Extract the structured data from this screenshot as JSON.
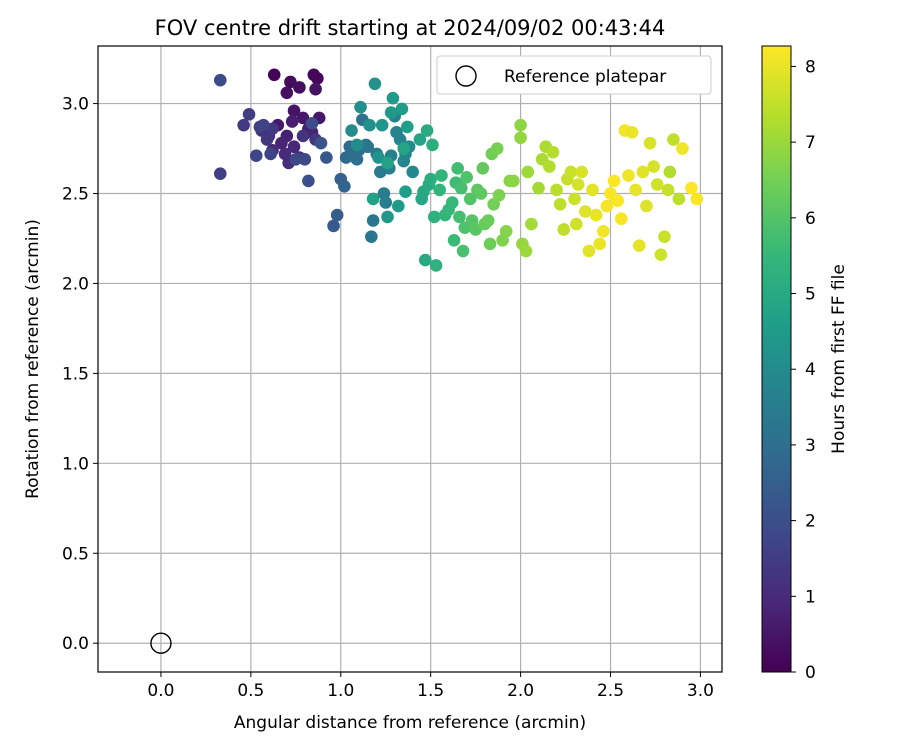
{
  "chart_data": {
    "type": "scatter",
    "title": "FOV centre drift starting at 2024/09/02 00:43:44",
    "xlabel": "Angular distance from reference (arcmin)",
    "ylabel": "Rotation from reference (arcmin)",
    "xlim": [
      -0.35,
      3.12
    ],
    "ylim": [
      -0.16,
      3.32
    ],
    "xticks": [
      0.0,
      0.5,
      1.0,
      1.5,
      2.0,
      2.5,
      3.0
    ],
    "xtick_labels": [
      "0.0",
      "0.5",
      "1.0",
      "1.5",
      "2.0",
      "2.5",
      "3.0"
    ],
    "yticks": [
      0.0,
      0.5,
      1.0,
      1.5,
      2.0,
      2.5,
      3.0
    ],
    "ytick_labels": [
      "0.0",
      "0.5",
      "1.0",
      "1.5",
      "2.0",
      "2.5",
      "3.0"
    ],
    "grid": true,
    "legend": {
      "position": "top-right",
      "entries": [
        "Reference platepar"
      ]
    },
    "reference_point": {
      "x": 0.0,
      "y": 0.0,
      "label": "Reference platepar"
    },
    "colorbar": {
      "label": "Hours from first FF file",
      "min": 0,
      "max": 8.27,
      "ticks": [
        0,
        1,
        2,
        3,
        4,
        5,
        6,
        7,
        8
      ],
      "tick_labels": [
        "0",
        "1",
        "2",
        "3",
        "4",
        "5",
        "6",
        "7",
        "8"
      ],
      "colormap": "viridis",
      "colormap_stops": [
        "#440154",
        "#482878",
        "#3e4989",
        "#31688e",
        "#26828e",
        "#1f9e89",
        "#35b779",
        "#6ece58",
        "#b5de2b",
        "#fde725"
      ]
    },
    "series": [
      {
        "points": [
          [
            0.63,
            3.16,
            0.05
          ],
          [
            0.85,
            3.16,
            0.1
          ],
          [
            0.87,
            3.14,
            0.15
          ],
          [
            0.72,
            3.12,
            0.25
          ],
          [
            0.77,
            3.09,
            0.3
          ],
          [
            0.7,
            3.06,
            0.35
          ],
          [
            0.86,
            3.08,
            0.4
          ],
          [
            0.74,
            2.96,
            0.45
          ],
          [
            0.79,
            2.92,
            0.5
          ],
          [
            0.88,
            2.92,
            0.55
          ],
          [
            0.65,
            2.88,
            0.6
          ],
          [
            0.73,
            2.9,
            0.65
          ],
          [
            0.82,
            2.86,
            0.7
          ],
          [
            0.7,
            2.82,
            0.75
          ],
          [
            0.84,
            2.84,
            0.8
          ],
          [
            0.67,
            2.78,
            0.85
          ],
          [
            0.74,
            2.76,
            0.9
          ],
          [
            0.62,
            2.74,
            0.95
          ],
          [
            0.69,
            2.72,
            1.0
          ],
          [
            0.71,
            2.67,
            1.05
          ],
          [
            0.77,
            2.7,
            1.1
          ],
          [
            0.6,
            2.82,
            1.15
          ],
          [
            0.56,
            2.85,
            1.2
          ],
          [
            0.79,
            2.82,
            1.25
          ],
          [
            0.86,
            2.8,
            1.3
          ],
          [
            0.59,
            2.8,
            1.35
          ],
          [
            0.62,
            2.86,
            1.4
          ],
          [
            0.46,
            2.88,
            1.45
          ],
          [
            0.49,
            2.94,
            1.5
          ],
          [
            0.33,
            2.61,
            1.55
          ],
          [
            0.55,
            2.87,
            1.6
          ],
          [
            0.57,
            2.88,
            1.65
          ],
          [
            0.61,
            2.72,
            1.7
          ],
          [
            0.53,
            2.71,
            1.75
          ],
          [
            0.75,
            2.69,
            1.8
          ],
          [
            0.8,
            2.69,
            1.85
          ],
          [
            0.33,
            3.13,
            1.9
          ],
          [
            0.84,
            2.89,
            1.95
          ],
          [
            0.82,
            2.57,
            2.05
          ],
          [
            0.89,
            2.78,
            2.15
          ],
          [
            0.92,
            2.7,
            2.25
          ],
          [
            0.96,
            2.32,
            2.35
          ],
          [
            0.98,
            2.38,
            2.45
          ],
          [
            1.0,
            2.58,
            2.55
          ],
          [
            1.02,
            2.54,
            2.65
          ],
          [
            1.03,
            2.7,
            2.75
          ],
          [
            1.05,
            2.76,
            2.85
          ],
          [
            1.07,
            2.71,
            2.95
          ],
          [
            1.09,
            2.69,
            3.0
          ],
          [
            1.1,
            2.74,
            3.05
          ],
          [
            1.12,
            2.91,
            3.1
          ],
          [
            1.14,
            2.77,
            3.15
          ],
          [
            1.15,
            2.76,
            3.2
          ],
          [
            1.17,
            2.26,
            3.25
          ],
          [
            1.18,
            2.35,
            3.3
          ],
          [
            1.2,
            2.72,
            3.35
          ],
          [
            1.22,
            2.62,
            3.4
          ],
          [
            1.24,
            2.5,
            3.45
          ],
          [
            1.25,
            2.45,
            3.5
          ],
          [
            1.27,
            2.64,
            3.55
          ],
          [
            1.28,
            2.71,
            3.6
          ],
          [
            1.3,
            2.93,
            3.65
          ],
          [
            1.31,
            2.84,
            3.7
          ],
          [
            1.33,
            2.8,
            3.75
          ],
          [
            1.35,
            2.68,
            3.8
          ],
          [
            1.36,
            2.72,
            3.85
          ],
          [
            1.38,
            2.76,
            3.9
          ],
          [
            1.4,
            2.62,
            3.95
          ],
          [
            1.06,
            2.85,
            4.0
          ],
          [
            1.09,
            2.77,
            4.05
          ],
          [
            1.11,
            2.98,
            4.1
          ],
          [
            1.16,
            2.88,
            4.15
          ],
          [
            1.19,
            3.11,
            4.2
          ],
          [
            1.21,
            2.7,
            4.25
          ],
          [
            1.23,
            2.88,
            4.3
          ],
          [
            1.26,
            2.37,
            4.35
          ],
          [
            1.28,
            2.95,
            4.4
          ],
          [
            1.29,
            3.03,
            4.45
          ],
          [
            1.32,
            2.43,
            4.5
          ],
          [
            1.34,
            2.97,
            4.55
          ],
          [
            1.36,
            2.51,
            4.6
          ],
          [
            1.37,
            2.87,
            4.65
          ],
          [
            1.18,
            2.47,
            4.7
          ],
          [
            1.26,
            2.67,
            4.75
          ],
          [
            1.35,
            2.75,
            4.8
          ],
          [
            1.44,
            2.8,
            4.85
          ],
          [
            1.45,
            2.47,
            4.9
          ],
          [
            1.46,
            2.51,
            4.95
          ],
          [
            1.47,
            2.13,
            5.0
          ],
          [
            1.48,
            2.85,
            5.05
          ],
          [
            1.49,
            2.55,
            5.1
          ],
          [
            1.5,
            2.58,
            5.15
          ],
          [
            1.51,
            2.77,
            5.2
          ],
          [
            1.52,
            2.37,
            5.25
          ],
          [
            1.53,
            2.1,
            5.3
          ],
          [
            1.55,
            2.52,
            5.35
          ],
          [
            1.56,
            2.6,
            5.4
          ],
          [
            1.58,
            2.38,
            5.45
          ],
          [
            1.6,
            2.41,
            5.5
          ],
          [
            1.62,
            2.45,
            5.55
          ],
          [
            1.63,
            2.24,
            5.6
          ],
          [
            1.64,
            2.56,
            5.65
          ],
          [
            1.65,
            2.64,
            5.7
          ],
          [
            1.66,
            2.37,
            5.75
          ],
          [
            1.67,
            2.53,
            5.8
          ],
          [
            1.68,
            2.18,
            5.85
          ],
          [
            1.69,
            2.31,
            5.9
          ],
          [
            1.7,
            2.59,
            5.95
          ],
          [
            1.72,
            2.47,
            6.0
          ],
          [
            1.73,
            2.35,
            6.05
          ],
          [
            1.75,
            2.3,
            6.1
          ],
          [
            1.76,
            2.52,
            6.15
          ],
          [
            1.78,
            2.5,
            6.2
          ],
          [
            1.79,
            2.64,
            6.25
          ],
          [
            1.8,
            2.33,
            6.3
          ],
          [
            1.82,
            2.35,
            6.35
          ],
          [
            1.83,
            2.22,
            6.4
          ],
          [
            1.84,
            2.72,
            6.45
          ],
          [
            1.85,
            2.44,
            6.5
          ],
          [
            1.87,
            2.75,
            6.55
          ],
          [
            1.88,
            2.49,
            6.6
          ],
          [
            1.9,
            2.24,
            6.65
          ],
          [
            1.92,
            2.29,
            6.7
          ],
          [
            1.94,
            2.57,
            6.75
          ],
          [
            1.96,
            2.57,
            6.8
          ],
          [
            2.0,
            2.88,
            6.85
          ],
          [
            2.0,
            2.81,
            6.9
          ],
          [
            2.01,
            2.22,
            6.95
          ],
          [
            2.03,
            2.18,
            7.0
          ],
          [
            2.04,
            2.62,
            7.05
          ],
          [
            2.06,
            2.33,
            7.1
          ],
          [
            2.1,
            2.53,
            7.15
          ],
          [
            2.12,
            2.69,
            7.2
          ],
          [
            2.14,
            2.76,
            7.25
          ],
          [
            2.16,
            2.65,
            7.3
          ],
          [
            2.18,
            2.73,
            7.35
          ],
          [
            2.2,
            2.52,
            7.4
          ],
          [
            2.22,
            2.44,
            7.45
          ],
          [
            2.24,
            2.3,
            7.5
          ],
          [
            2.26,
            2.58,
            7.55
          ],
          [
            2.28,
            2.62,
            7.6
          ],
          [
            2.3,
            2.47,
            7.65
          ],
          [
            2.31,
            2.33,
            7.7
          ],
          [
            2.32,
            2.55,
            7.75
          ],
          [
            2.34,
            2.62,
            7.8
          ],
          [
            2.36,
            2.4,
            7.85
          ],
          [
            2.38,
            2.18,
            7.9
          ],
          [
            2.4,
            2.52,
            7.95
          ],
          [
            2.42,
            2.38,
            8.0
          ],
          [
            2.44,
            2.22,
            8.05
          ],
          [
            2.46,
            2.29,
            8.1
          ],
          [
            2.48,
            2.43,
            8.15
          ],
          [
            2.5,
            2.5,
            8.2
          ],
          [
            2.52,
            2.57,
            8.25
          ],
          [
            2.54,
            2.46,
            8.22
          ],
          [
            2.56,
            2.36,
            8.18
          ],
          [
            2.58,
            2.85,
            8.14
          ],
          [
            2.6,
            2.6,
            8.1
          ],
          [
            2.62,
            2.84,
            8.05
          ],
          [
            2.64,
            2.52,
            8.0
          ],
          [
            2.66,
            2.21,
            7.95
          ],
          [
            2.68,
            2.62,
            7.9
          ],
          [
            2.7,
            2.43,
            7.85
          ],
          [
            2.72,
            2.78,
            7.8
          ],
          [
            2.74,
            2.65,
            7.75
          ],
          [
            2.76,
            2.55,
            7.7
          ],
          [
            2.78,
            2.16,
            7.65
          ],
          [
            2.8,
            2.26,
            7.6
          ],
          [
            2.82,
            2.52,
            7.55
          ],
          [
            2.85,
            2.8,
            7.5
          ],
          [
            2.88,
            2.47,
            7.45
          ],
          [
            2.95,
            2.53,
            8.25
          ],
          [
            2.98,
            2.47,
            8.2
          ],
          [
            2.9,
            2.75,
            8.1
          ],
          [
            2.83,
            2.62,
            7.3
          ]
        ]
      }
    ]
  }
}
